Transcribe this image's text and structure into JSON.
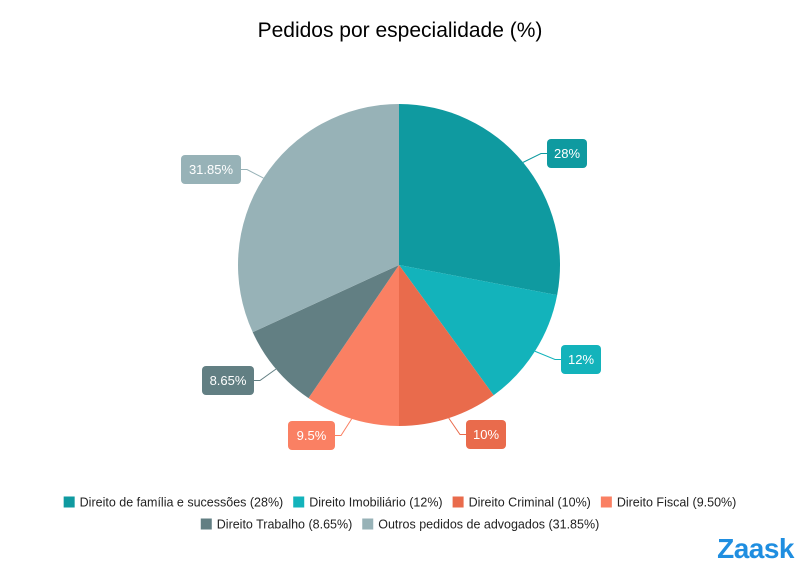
{
  "brand": {
    "logo_text": "Zaask",
    "logo_color": "#1f8ee0"
  },
  "chart_data": {
    "type": "pie",
    "title": "Pedidos por especialidade (%)",
    "start_angle_deg": 0,
    "direction": "clockwise",
    "slices": [
      {
        "label": "Direito de família e sucessões",
        "legend": "Direito de família e sucessões (28%)",
        "value": 28,
        "callout": "28%",
        "color": "#0f9aa0"
      },
      {
        "label": "Direito Imobiliário",
        "legend": "Direito Imobiliário (12%)",
        "value": 12,
        "callout": "12%",
        "color": "#13b3bb"
      },
      {
        "label": "Direito Criminal",
        "legend": "Direito Criminal (10%)",
        "value": 10,
        "callout": "10%",
        "color": "#e96b4c"
      },
      {
        "label": "Direito Fiscal",
        "legend": "Direito Fiscal (9.50%)",
        "value": 9.5,
        "callout": "9.5%",
        "color": "#fa8063"
      },
      {
        "label": "Direito Trabalho",
        "legend": "Direito Trabalho (8.65%)",
        "value": 8.65,
        "callout": "8.65%",
        "color": "#627f83"
      },
      {
        "label": "Outros pedidos de advogados",
        "legend": "Outros pedidos de advogados (31.85%)",
        "value": 31.85,
        "callout": "31.85%",
        "color": "#97b2b7"
      }
    ],
    "legend_position": "bottom"
  }
}
